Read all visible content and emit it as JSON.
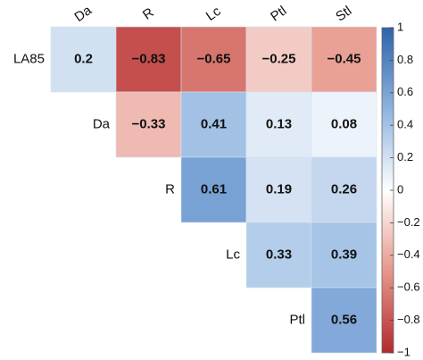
{
  "chart_data": {
    "type": "heatmap",
    "columns": [
      "Da",
      "R",
      "Lc",
      "Ptl",
      "Stl"
    ],
    "rows": [
      "LA85",
      "Da",
      "R",
      "Lc",
      "Ptl"
    ],
    "values": [
      [
        0.2,
        -0.83,
        -0.65,
        -0.25,
        -0.45
      ],
      [
        null,
        -0.33,
        0.41,
        0.13,
        0.08
      ],
      [
        null,
        null,
        0.61,
        0.19,
        0.26
      ],
      [
        null,
        null,
        null,
        0.33,
        0.39
      ],
      [
        null,
        null,
        null,
        null,
        0.56
      ]
    ],
    "value_labels": [
      [
        "0.2",
        "−0.83",
        "−0.65",
        "−0.25",
        "−0.45"
      ],
      [
        null,
        "−0.33",
        "0.41",
        "0.13",
        "0.08"
      ],
      [
        null,
        null,
        "0.61",
        "0.19",
        "0.26"
      ],
      [
        null,
        null,
        null,
        "0.33",
        "0.39"
      ],
      [
        null,
        null,
        null,
        null,
        "0.56"
      ]
    ],
    "colorscale": [
      {
        "value": -1,
        "color": "#b22a2e"
      },
      {
        "value": -0.5,
        "color": "#e6968a"
      },
      {
        "value": 0,
        "color": "#ffffff"
      },
      {
        "value": 0.5,
        "color": "#8db3df"
      },
      {
        "value": 1,
        "color": "#2e62ab"
      }
    ],
    "clim": [
      -1,
      1
    ],
    "cticks": [
      1,
      0.8,
      0.6,
      0.4,
      0.2,
      0,
      {
        "value": -0.2,
        "label": "−0.2"
      },
      {
        "value": -0.4,
        "label": "−0.4"
      },
      {
        "value": -0.6,
        "label": "−0.6"
      },
      {
        "value": -0.8,
        "label": "−0.8"
      },
      {
        "value": -1,
        "label": "−1"
      }
    ]
  }
}
